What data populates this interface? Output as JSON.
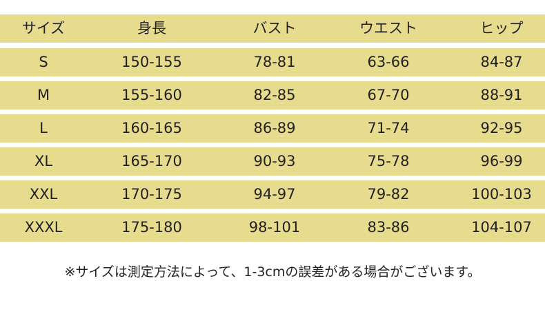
{
  "table": {
    "header": [
      "サイズ",
      "身長",
      "バスト",
      "ウエスト",
      "ヒップ"
    ],
    "rows": [
      [
        "S",
        "150-155",
        "78-81",
        "63-66",
        "84-87"
      ],
      [
        "M",
        "155-160",
        "82-85",
        "67-70",
        "88-91"
      ],
      [
        "L",
        "160-165",
        "86-89",
        "71-74",
        "92-95"
      ],
      [
        "XL",
        "165-170",
        "90-93",
        "75-78",
        "96-99"
      ],
      [
        "XXL",
        "170-175",
        "94-97",
        "79-82",
        "100-103"
      ],
      [
        "XXXL",
        "175-180",
        "98-101",
        "83-86",
        "104-107"
      ]
    ]
  },
  "note": "※サイズは測定方法によって、1-3cmの誤差がある場合がございます。"
}
